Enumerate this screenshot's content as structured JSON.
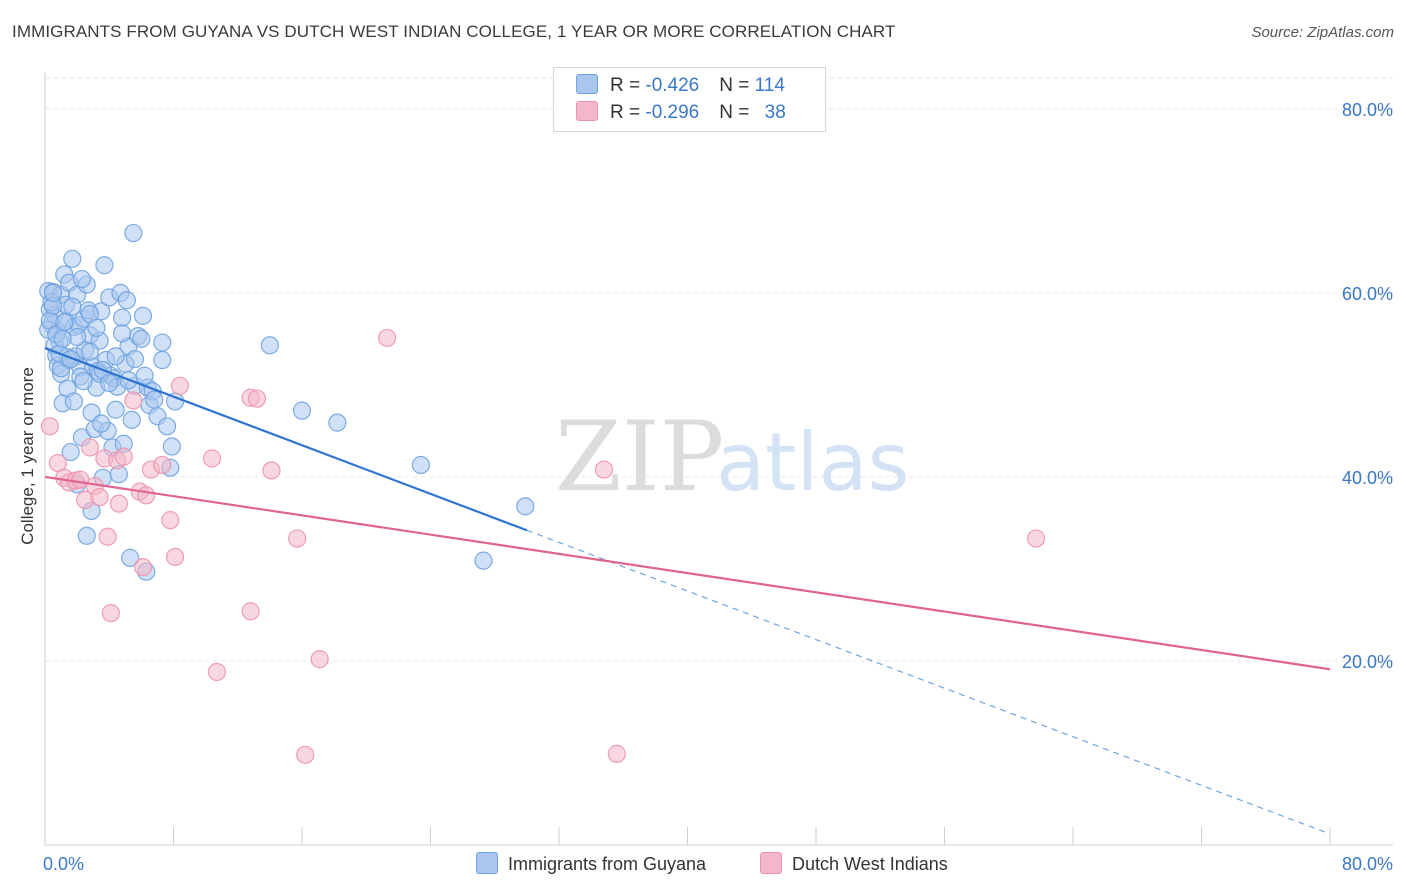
{
  "title": "IMMIGRANTS FROM GUYANA VS DUTCH WEST INDIAN COLLEGE, 1 YEAR OR MORE CORRELATION CHART",
  "source": "Source: ZipAtlas.com",
  "watermark": {
    "zip": "ZIP",
    "atlas": "atlas"
  },
  "legend_top": {
    "rows": [
      {
        "r_label": "R = ",
        "r_value": "-0.426",
        "n_label": "N = ",
        "n_value": "114",
        "color": "#a9c6ef"
      },
      {
        "r_label": "R = ",
        "r_value": "-0.296",
        "n_label": "N = ",
        "n_value": "38",
        "color": "#f4b7c9"
      }
    ]
  },
  "legend_bottom": [
    {
      "label": "Immigrants from Guyana",
      "color": "#a9c6ef"
    },
    {
      "label": "Dutch West Indians",
      "color": "#f4b7c9"
    }
  ],
  "chart_data": {
    "type": "scatter",
    "title": "IMMIGRANTS FROM GUYANA VS DUTCH WEST INDIAN COLLEGE, 1 YEAR OR MORE CORRELATION CHART",
    "xlabel": "",
    "ylabel": "College, 1 year or more",
    "xlim": [
      0,
      80
    ],
    "ylim": [
      0,
      84
    ],
    "x_tick_labels": [
      "0.0%",
      "80.0%"
    ],
    "y_ticks": [
      20,
      40,
      60,
      80
    ],
    "y_tick_labels": [
      "20.0%",
      "40.0%",
      "60.0%",
      "80.0%"
    ],
    "grid": true,
    "series": [
      {
        "name": "Immigrants from Guyana",
        "color": "#6fa3e0",
        "fill": "#a9c6ef",
        "trend": {
          "x0": 0,
          "y0": 54.0,
          "x1": 30,
          "y1": 34.2,
          "dash_to_x": 80,
          "dash_to_y": 1.2
        },
        "points": [
          [
            0.2,
            60.2
          ],
          [
            0.3,
            58.2
          ],
          [
            0.4,
            56.6
          ],
          [
            0.5,
            60.1
          ],
          [
            0.6,
            57.6
          ],
          [
            0.7,
            53.2
          ],
          [
            0.8,
            55.8
          ],
          [
            0.8,
            52.1
          ],
          [
            0.9,
            54.7
          ],
          [
            1.0,
            59.8
          ],
          [
            1.0,
            51.2
          ],
          [
            1.1,
            48.0
          ],
          [
            1.2,
            62.0
          ],
          [
            1.3,
            58.7
          ],
          [
            1.3,
            56.9
          ],
          [
            1.4,
            49.6
          ],
          [
            1.5,
            61.1
          ],
          [
            1.5,
            52.7
          ],
          [
            1.6,
            42.7
          ],
          [
            1.7,
            63.7
          ],
          [
            1.8,
            56.3
          ],
          [
            1.9,
            53.1
          ],
          [
            2.0,
            59.8
          ],
          [
            2.0,
            39.2
          ],
          [
            2.1,
            56.5
          ],
          [
            2.2,
            51.9
          ],
          [
            2.3,
            44.3
          ],
          [
            2.4,
            57.2
          ],
          [
            2.5,
            53.8
          ],
          [
            2.6,
            60.9
          ],
          [
            2.6,
            33.6
          ],
          [
            2.7,
            58.1
          ],
          [
            2.8,
            55.4
          ],
          [
            2.9,
            36.3
          ],
          [
            3.0,
            52.0
          ],
          [
            3.1,
            45.2
          ],
          [
            3.2,
            49.7
          ],
          [
            3.3,
            51.5
          ],
          [
            3.4,
            54.8
          ],
          [
            3.5,
            58.0
          ],
          [
            3.6,
            39.9
          ],
          [
            3.7,
            63.0
          ],
          [
            3.8,
            52.7
          ],
          [
            3.9,
            45.0
          ],
          [
            4.0,
            59.5
          ],
          [
            4.1,
            51.0
          ],
          [
            4.2,
            43.2
          ],
          [
            4.3,
            50.7
          ],
          [
            4.4,
            47.3
          ],
          [
            4.5,
            49.8
          ],
          [
            4.6,
            40.3
          ],
          [
            4.7,
            60.0
          ],
          [
            4.8,
            57.3
          ],
          [
            4.9,
            43.6
          ],
          [
            5.0,
            52.3
          ],
          [
            5.1,
            59.2
          ],
          [
            5.2,
            54.2
          ],
          [
            5.3,
            31.2
          ],
          [
            5.4,
            46.2
          ],
          [
            5.5,
            66.5
          ],
          [
            5.6,
            49.9
          ],
          [
            5.8,
            55.3
          ],
          [
            6.0,
            55.0
          ],
          [
            6.1,
            57.5
          ],
          [
            6.3,
            29.7
          ],
          [
            6.4,
            49.7
          ],
          [
            6.5,
            47.8
          ],
          [
            6.7,
            49.3
          ],
          [
            7.0,
            46.6
          ],
          [
            7.3,
            52.7
          ],
          [
            7.3,
            54.6
          ],
          [
            7.6,
            45.5
          ],
          [
            7.8,
            41.0
          ],
          [
            7.9,
            43.3
          ],
          [
            8.1,
            48.2
          ],
          [
            14.0,
            54.3
          ],
          [
            16.0,
            47.2
          ],
          [
            18.2,
            45.9
          ],
          [
            23.4,
            41.3
          ],
          [
            27.3,
            30.9
          ],
          [
            29.9,
            36.8
          ],
          [
            0.2,
            56.0
          ],
          [
            0.4,
            59.0
          ],
          [
            0.6,
            54.3
          ],
          [
            1.0,
            51.8
          ],
          [
            1.4,
            53.0
          ],
          [
            1.8,
            48.2
          ],
          [
            2.2,
            50.9
          ],
          [
            2.8,
            57.7
          ],
          [
            3.4,
            51.2
          ],
          [
            0.3,
            57.0
          ],
          [
            0.5,
            58.6
          ],
          [
            0.7,
            55.5
          ],
          [
            0.9,
            53.4
          ],
          [
            1.2,
            56.8
          ],
          [
            1.6,
            52.8
          ],
          [
            2.0,
            55.2
          ],
          [
            2.4,
            50.4
          ],
          [
            2.8,
            53.6
          ],
          [
            3.2,
            56.2
          ],
          [
            3.6,
            51.6
          ],
          [
            4.0,
            50.2
          ],
          [
            4.4,
            53.1
          ],
          [
            4.8,
            55.6
          ],
          [
            5.2,
            50.5
          ],
          [
            5.6,
            52.8
          ],
          [
            6.2,
            51.0
          ],
          [
            6.8,
            48.4
          ],
          [
            0.5,
            60.0
          ],
          [
            1.1,
            55.0
          ],
          [
            1.7,
            58.5
          ],
          [
            2.3,
            61.5
          ],
          [
            2.9,
            47.0
          ],
          [
            3.5,
            45.8
          ]
        ]
      },
      {
        "name": "Dutch West Indians",
        "color": "#ec93ad",
        "fill": "#f4b7c9",
        "trend": {
          "x0": 0,
          "y0": 40.0,
          "x1": 80,
          "y1": 19.1
        },
        "points": [
          [
            0.3,
            45.5
          ],
          [
            0.8,
            41.5
          ],
          [
            1.2,
            39.9
          ],
          [
            1.5,
            39.4
          ],
          [
            1.9,
            39.6
          ],
          [
            2.2,
            39.7
          ],
          [
            2.5,
            37.5
          ],
          [
            2.8,
            43.2
          ],
          [
            3.1,
            39.0
          ],
          [
            3.4,
            37.8
          ],
          [
            3.7,
            42.0
          ],
          [
            3.9,
            33.5
          ],
          [
            4.1,
            25.2
          ],
          [
            4.5,
            41.8
          ],
          [
            4.6,
            37.1
          ],
          [
            4.9,
            42.2
          ],
          [
            5.5,
            48.3
          ],
          [
            5.9,
            38.4
          ],
          [
            6.1,
            30.2
          ],
          [
            6.3,
            38.0
          ],
          [
            6.6,
            40.8
          ],
          [
            7.3,
            41.3
          ],
          [
            7.8,
            35.3
          ],
          [
            8.1,
            31.3
          ],
          [
            8.4,
            49.9
          ],
          [
            10.4,
            42.0
          ],
          [
            10.7,
            18.8
          ],
          [
            12.8,
            48.6
          ],
          [
            12.8,
            25.4
          ],
          [
            13.2,
            48.5
          ],
          [
            14.1,
            40.7
          ],
          [
            15.7,
            33.3
          ],
          [
            16.2,
            9.8
          ],
          [
            17.1,
            20.2
          ],
          [
            21.3,
            55.1
          ],
          [
            34.8,
            40.8
          ],
          [
            35.6,
            9.9
          ],
          [
            61.7,
            33.3
          ]
        ]
      }
    ]
  }
}
